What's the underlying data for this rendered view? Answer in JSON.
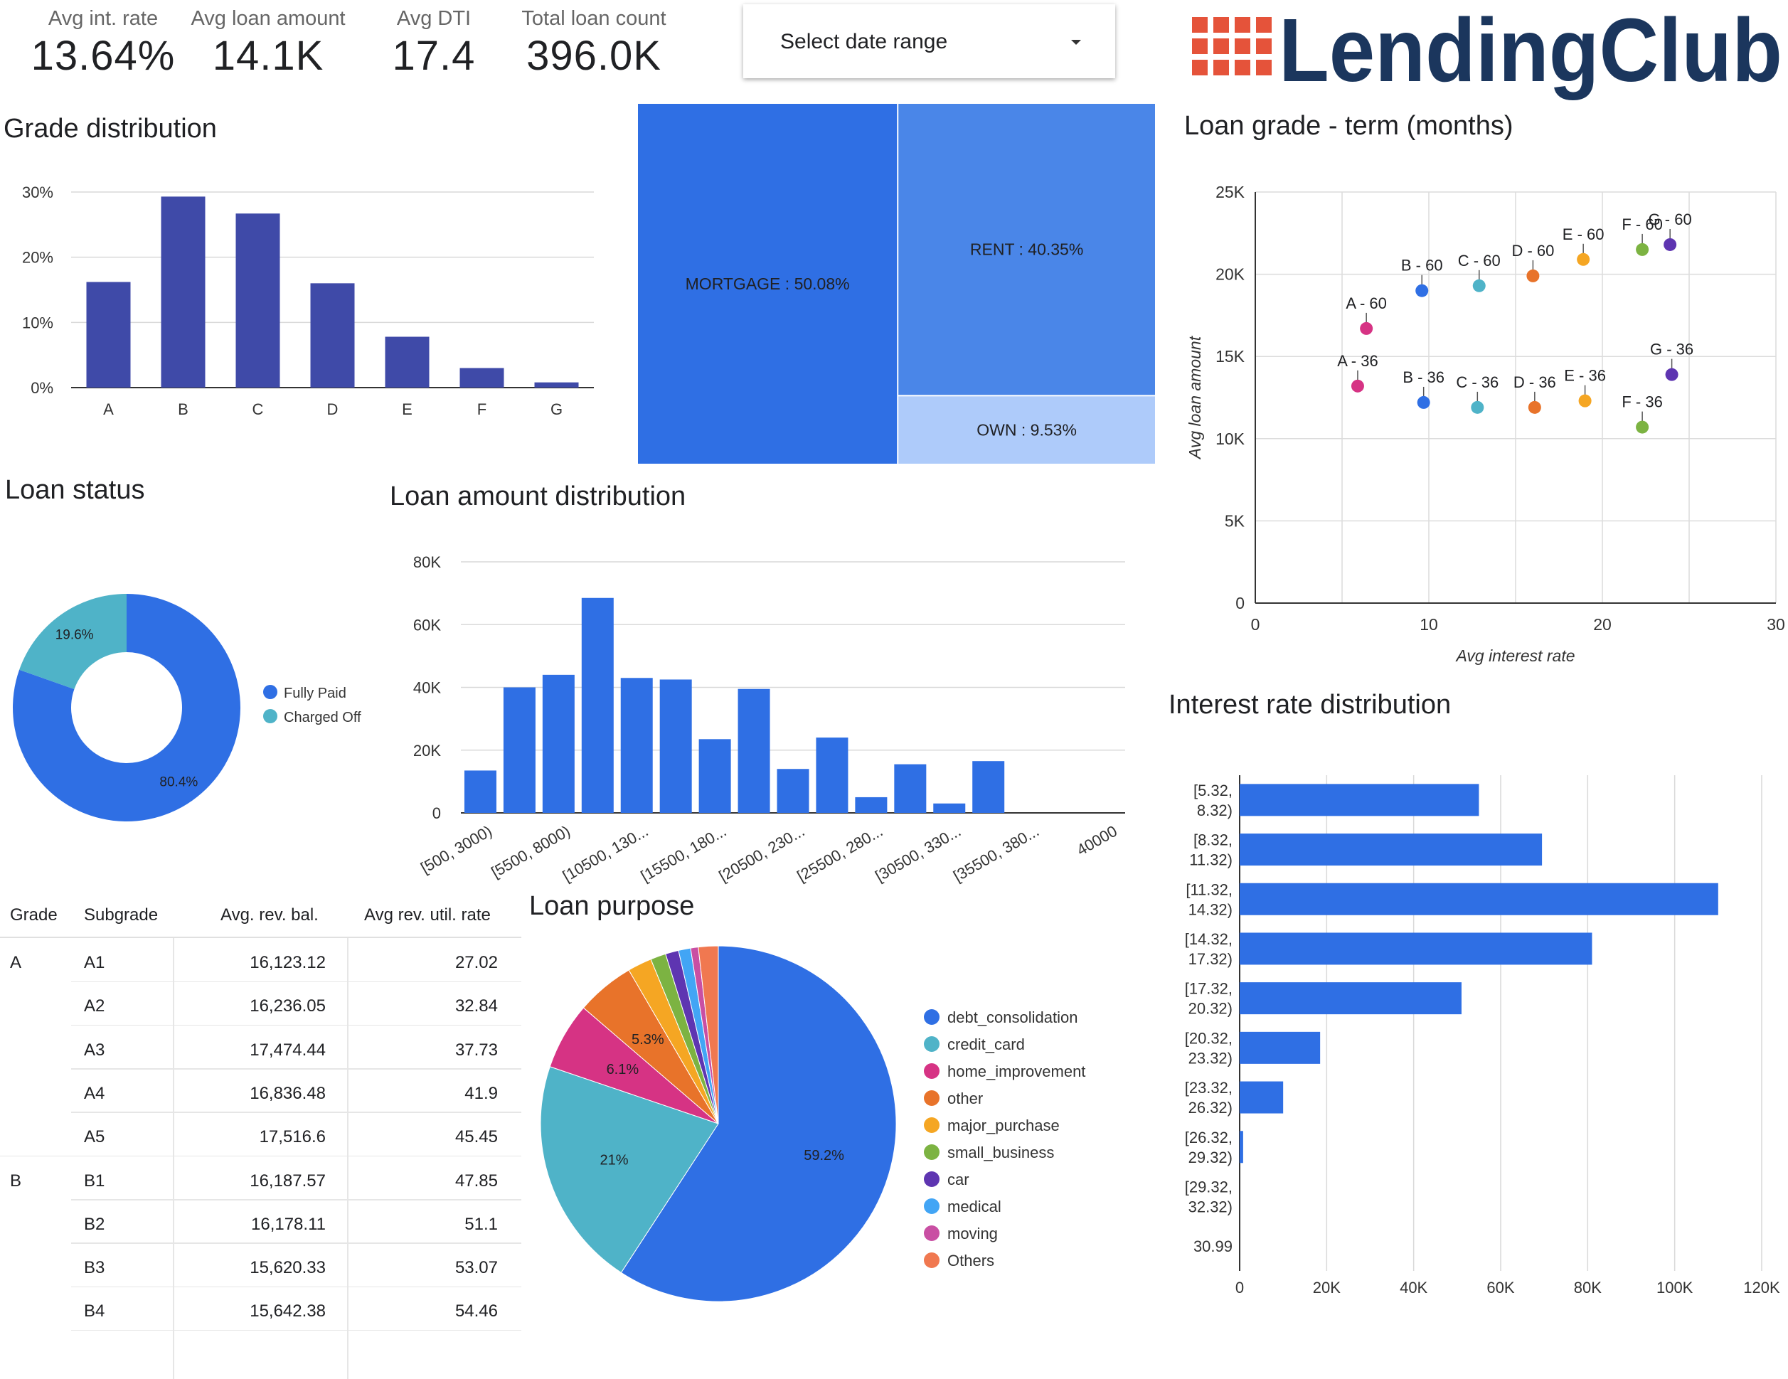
{
  "kpis": [
    {
      "label": "Avg int. rate",
      "value": "13.64%"
    },
    {
      "label": "Avg loan amount",
      "value": "14.1K"
    },
    {
      "label": "Avg DTI",
      "value": "17.4"
    },
    {
      "label": "Total loan count",
      "value": "396.0K"
    }
  ],
  "date_range": {
    "label": "Select date range"
  },
  "logo": {
    "text": "LendingClub",
    "color": "#1b365d",
    "accent": "#e5533a"
  },
  "titles": {
    "grade_distribution": "Grade distribution",
    "loan_grade_term": "Loan grade - term (months)",
    "loan_status": "Loan status",
    "loan_amount_distribution": "Loan amount distribution",
    "interest_rate_distribution": "Interest rate distribution",
    "loan_purpose": "Loan purpose"
  },
  "table": {
    "headers": [
      "Grade",
      "Subgrade",
      "Avg. rev. bal.",
      "Avg rev. util. rate"
    ],
    "rows": [
      {
        "grade": "A",
        "subgrade": "A1",
        "bal": "16,123.12",
        "util": "27.02"
      },
      {
        "grade": "",
        "subgrade": "A2",
        "bal": "16,236.05",
        "util": "32.84"
      },
      {
        "grade": "",
        "subgrade": "A3",
        "bal": "17,474.44",
        "util": "37.73"
      },
      {
        "grade": "",
        "subgrade": "A4",
        "bal": "16,836.48",
        "util": "41.9"
      },
      {
        "grade": "",
        "subgrade": "A5",
        "bal": "17,516.6",
        "util": "45.45"
      },
      {
        "grade": "B",
        "subgrade": "B1",
        "bal": "16,187.57",
        "util": "47.85"
      },
      {
        "grade": "",
        "subgrade": "B2",
        "bal": "16,178.11",
        "util": "51.1"
      },
      {
        "grade": "",
        "subgrade": "B3",
        "bal": "15,620.33",
        "util": "53.07"
      },
      {
        "grade": "",
        "subgrade": "B4",
        "bal": "15,642.38",
        "util": "54.46"
      }
    ]
  },
  "chart_data": [
    {
      "id": "grade_distribution",
      "type": "bar",
      "title": "Grade distribution",
      "categories": [
        "A",
        "B",
        "C",
        "D",
        "E",
        "F",
        "G"
      ],
      "values": [
        16.2,
        29.3,
        26.7,
        16.0,
        7.8,
        3.0,
        0.8
      ],
      "yticks": [
        "0%",
        "10%",
        "20%",
        "30%"
      ],
      "ylim": [
        0,
        30
      ],
      "color": "#3f4aa8",
      "grid": true
    },
    {
      "id": "home_ownership",
      "type": "treemap",
      "items": [
        {
          "label": "MORTGAGE : 50.08%",
          "value": 50.08,
          "color": "#2f6fe4"
        },
        {
          "label": "RENT : 40.35%",
          "value": 40.35,
          "color": "#4a86e8"
        },
        {
          "label": "OWN : 9.53%",
          "value": 9.53,
          "color": "#aecbfa"
        }
      ]
    },
    {
      "id": "loan_grade_term",
      "type": "scatter",
      "title": "Loan grade - term (months)",
      "xlabel": "Avg interest rate",
      "ylabel": "Avg loan amount",
      "xlim": [
        0,
        30
      ],
      "ylim": [
        0,
        25000
      ],
      "xticks": [
        "0",
        "10",
        "20",
        "30"
      ],
      "yticks": [
        "0",
        "5K",
        "10K",
        "15K",
        "20K",
        "25K"
      ],
      "grid": true,
      "points": [
        {
          "label": "A - 60",
          "x": 6.4,
          "y": 16700,
          "color": "#d63384"
        },
        {
          "label": "B - 60",
          "x": 9.6,
          "y": 19000,
          "color": "#2f6fe4"
        },
        {
          "label": "C - 60",
          "x": 12.9,
          "y": 19300,
          "color": "#4fb3c8"
        },
        {
          "label": "D - 60",
          "x": 16.0,
          "y": 19900,
          "color": "#e8732a"
        },
        {
          "label": "E - 60",
          "x": 18.9,
          "y": 20900,
          "color": "#f5a623"
        },
        {
          "label": "F - 60",
          "x": 22.3,
          "y": 21500,
          "color": "#7cb342"
        },
        {
          "label": "G - 60",
          "x": 23.9,
          "y": 21800,
          "color": "#5e35b1"
        },
        {
          "label": "A - 36",
          "x": 5.9,
          "y": 13200,
          "color": "#d63384"
        },
        {
          "label": "B - 36",
          "x": 9.7,
          "y": 12200,
          "color": "#2f6fe4"
        },
        {
          "label": "C - 36",
          "x": 12.8,
          "y": 11900,
          "color": "#4fb3c8"
        },
        {
          "label": "D - 36",
          "x": 16.1,
          "y": 11900,
          "color": "#e8732a"
        },
        {
          "label": "E - 36",
          "x": 19.0,
          "y": 12300,
          "color": "#f5a623"
        },
        {
          "label": "F - 36",
          "x": 22.3,
          "y": 10700,
          "color": "#7cb342"
        },
        {
          "label": "G - 36",
          "x": 24.0,
          "y": 13900,
          "color": "#5e35b1"
        }
      ]
    },
    {
      "id": "loan_status",
      "type": "pie",
      "title": "Loan status",
      "donut": true,
      "slices": [
        {
          "name": "Fully Paid",
          "value": 80.4,
          "label": "80.4%",
          "color": "#2f6fe4"
        },
        {
          "name": "Charged Off",
          "value": 19.6,
          "label": "19.6%",
          "color": "#4fb3c8"
        }
      ],
      "legend": "right"
    },
    {
      "id": "loan_amount_distribution",
      "type": "bar",
      "title": "Loan amount distribution",
      "categories": [
        "[500, 3000)",
        "",
        "[5500, 8000)",
        "",
        "[10500, 130...",
        "",
        "[15500, 180...",
        "",
        "[20500, 230...",
        "",
        "[25500, 280...",
        "",
        "[30500, 330...",
        "",
        "[35500, 380...",
        "",
        "40000"
      ],
      "values": [
        13500,
        40000,
        44000,
        68500,
        43000,
        42500,
        23500,
        39500,
        14000,
        24000,
        5000,
        15500,
        3000,
        16500,
        0,
        0,
        0
      ],
      "yticks": [
        "0",
        "20K",
        "40K",
        "60K",
        "80K"
      ],
      "ylim": [
        0,
        80000
      ],
      "color": "#2f6fe4",
      "grid": true
    },
    {
      "id": "interest_rate_distribution",
      "type": "bar",
      "orientation": "horizontal",
      "title": "Interest rate distribution",
      "categories": [
        [
          "[5.32,",
          "8.32)"
        ],
        [
          "[8.32,",
          "11.32)"
        ],
        [
          "[11.32,",
          "14.32)"
        ],
        [
          "[14.32,",
          "17.32)"
        ],
        [
          "[17.32,",
          "20.32)"
        ],
        [
          "[20.32,",
          "23.32)"
        ],
        [
          "[23.32,",
          "26.32)"
        ],
        [
          "[26.32,",
          "29.32)"
        ],
        [
          "[29.32,",
          "32.32)"
        ],
        [
          "30.99"
        ]
      ],
      "values": [
        55000,
        69500,
        110000,
        81000,
        51000,
        18500,
        10000,
        800,
        0,
        0
      ],
      "xticks": [
        "0",
        "20K",
        "40K",
        "60K",
        "80K",
        "100K",
        "120K"
      ],
      "xlim": [
        0,
        120000
      ],
      "color": "#2f6fe4",
      "grid": true
    },
    {
      "id": "loan_purpose",
      "type": "pie",
      "title": "Loan purpose",
      "legend": "right",
      "slices": [
        {
          "name": "debt_consolidation",
          "value": 59.2,
          "label": "59.2%",
          "color": "#2f6fe4"
        },
        {
          "name": "credit_card",
          "value": 21.0,
          "label": "21%",
          "color": "#4fb3c8"
        },
        {
          "name": "home_improvement",
          "value": 6.1,
          "label": "6.1%",
          "color": "#d63384"
        },
        {
          "name": "other",
          "value": 5.3,
          "label": "5.3%",
          "color": "#e8732a"
        },
        {
          "name": "major_purchase",
          "value": 2.2,
          "label": "",
          "color": "#f5a623"
        },
        {
          "name": "small_business",
          "value": 1.4,
          "label": "",
          "color": "#7cb342"
        },
        {
          "name": "car",
          "value": 1.2,
          "label": "",
          "color": "#5e35b1"
        },
        {
          "name": "medical",
          "value": 1.1,
          "label": "",
          "color": "#42a5f5"
        },
        {
          "name": "moving",
          "value": 0.7,
          "label": "",
          "color": "#c94fa3"
        },
        {
          "name": "Others",
          "value": 1.8,
          "label": "",
          "color": "#f07850"
        }
      ]
    }
  ]
}
